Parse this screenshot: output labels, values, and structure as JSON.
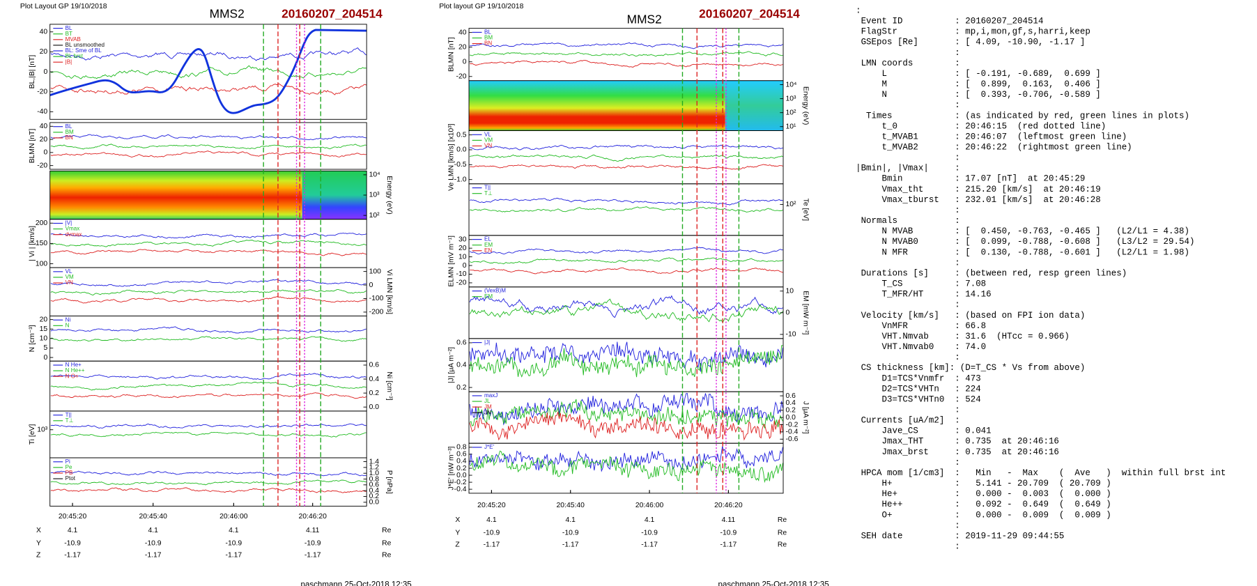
{
  "plots": [
    {
      "header": "Plot Layout GP 19/10/2018",
      "instrument": "MMS2",
      "event": "20160207_204514",
      "panels": [
        {
          "ylabel": "BL,|B| [nT]",
          "yticks": [
            "40",
            "20",
            "0",
            "-20",
            "-40"
          ],
          "legend": [
            "BL",
            "BT",
            "MVAB",
            "BL unsmoothed",
            "BL: Sme of BL",
            "BL brst",
            "|B|"
          ]
        },
        {
          "ylabel": "BLMN [nT]",
          "yticks": [
            "40",
            "20",
            "0",
            "-20"
          ],
          "legend": [
            "BL",
            "BM",
            "BN"
          ]
        },
        {
          "ylabel": "Energy (eV)",
          "yticks": [
            "10⁴",
            "10³",
            "10²"
          ],
          "legend": []
        },
        {
          "ylabel": "| Vi | [km/s]",
          "yticks": [
            "200",
            "150",
            "100"
          ],
          "legend": [
            "|V|",
            "Vmax",
            "dvmax"
          ]
        },
        {
          "ylabel": "Vi LMN [km/s]",
          "yticks": [
            "100",
            "0",
            "-100",
            "-200"
          ],
          "legend": [
            "VL",
            "VM",
            "VN"
          ]
        },
        {
          "ylabel": "N [cm⁻³]",
          "yticks": [
            "20",
            "15",
            "10",
            "5",
            "0"
          ],
          "legend": [
            "Ni",
            "N"
          ]
        },
        {
          "ylabel": "Ni [cm⁻³]",
          "yticks": [
            "0.6",
            "0.4",
            "0.2",
            "0.0"
          ],
          "legend": [
            "N He+",
            "N He++",
            "N O+"
          ]
        },
        {
          "ylabel": "Ti [eV]",
          "yticks": [
            "10³"
          ],
          "legend": [
            "T||",
            "T⊥"
          ]
        },
        {
          "ylabel": "P [nPa]",
          "yticks": [
            "1.4",
            "1.2",
            "1.0",
            "0.8",
            "0.6",
            "0.4",
            "0.2",
            "0.0"
          ],
          "legend": [
            "Pi",
            "Pe",
            "PB",
            "Ptot"
          ]
        }
      ],
      "time_ticks": [
        "20:45:20",
        "20:45:40",
        "20:46:00",
        "20:46:20"
      ],
      "position_rows": [
        {
          "label": "X",
          "values": [
            "4.1",
            "4.1",
            "4.1",
            "4.11"
          ],
          "unit": "Re"
        },
        {
          "label": "Y",
          "values": [
            "-10.9",
            "-10.9",
            "-10.9",
            "-10.9"
          ],
          "unit": "Re"
        },
        {
          "label": "Z",
          "values": [
            "-1.17",
            "-1.17",
            "-1.17",
            "-1.17"
          ],
          "unit": "Re"
        }
      ],
      "footer": "paschmann 25-Oct-2018 12:35"
    },
    {
      "header": "Plot layout GP 19/10/2018",
      "instrument": "MMS2",
      "event": "20160207_204514",
      "panels": [
        {
          "ylabel": "BLMN [nT]",
          "yticks": [
            "40",
            "20",
            "0",
            "-20"
          ],
          "legend": [
            "BL",
            "BM",
            "BN"
          ]
        },
        {
          "ylabel": "Energy (eV)",
          "yticks": [
            "10⁴",
            "10³",
            "10²",
            "10¹"
          ],
          "legend": []
        },
        {
          "ylabel": "Ve LMN [km/s] [x10³]",
          "yticks": [
            "0.5",
            "0.0",
            "-0.5",
            "-1.0"
          ],
          "legend": [
            "VL",
            "VM",
            "VN"
          ]
        },
        {
          "ylabel": "Te [eV]",
          "yticks": [
            "10²"
          ],
          "legend": [
            "T||",
            "T⊥"
          ]
        },
        {
          "ylabel": "ELMN [mV m⁻¹]",
          "yticks": [
            "30",
            "20",
            "10",
            "0",
            "-10",
            "-20"
          ],
          "legend": [
            "EL",
            "EM",
            "EN"
          ]
        },
        {
          "ylabel": "EM [mW m⁻²]",
          "yticks": [
            "10",
            "0",
            "-10"
          ],
          "legend": [
            "(VexB)M",
            "EM"
          ]
        },
        {
          "ylabel": "|J| [μA m⁻²]",
          "yticks": [
            "0.6",
            "0.4",
            "0.2"
          ],
          "legend": [
            "|J|"
          ]
        },
        {
          "ylabel": "J [μA m⁻²]",
          "yticks": [
            "0.6",
            "0.4",
            "0.2",
            "0.0",
            "-0.2",
            "-0.4",
            "-0.6"
          ],
          "legend": [
            "maxJ",
            "JL",
            "JM",
            "JN"
          ]
        },
        {
          "ylabel": "J*E' [nW m⁻³]",
          "yticks": [
            "0.8",
            "0.6",
            "0.4",
            "0.2",
            "0.0",
            "-0.2",
            "-0.4"
          ],
          "legend": [
            "J*E'"
          ]
        }
      ],
      "time_ticks": [
        "20:45:20",
        "20:45:40",
        "20:46:00",
        "20:46:20"
      ],
      "position_rows": [
        {
          "label": "X",
          "values": [
            "4.1",
            "4.1",
            "4.1",
            "4.11"
          ],
          "unit": "Re"
        },
        {
          "label": "Y",
          "values": [
            "-10.9",
            "-10.9",
            "-10.9",
            "-10.9"
          ],
          "unit": "Re"
        },
        {
          "label": "Z",
          "values": [
            "-1.17",
            "-1.17",
            "-1.17",
            "-1.17"
          ],
          "unit": "Re"
        }
      ],
      "footer": "paschmann 25-Oct-2018 12:35"
    }
  ],
  "summary": {
    "lines": [
      ":",
      " Event ID          : 20160207_204514",
      " FlagStr           : mp,i,mon,gf,s,harri,keep",
      " GSEpos [Re]       : [ 4.09, -10.90, -1.17 ]",
      "                   :",
      " LMN coords        :",
      "     L             : [ -0.191, -0.689,  0.699 ]",
      "     M             : [  0.899,  0.163,  0.406 ]",
      "     N             : [  0.393, -0.706, -0.589 ]",
      "                   :",
      "  Times            : (as indicated by red, green lines in plots)",
      "     t_0           : 20:46:15  (red dotted line)",
      "     t_MVAB1       : 20:46:07  (leftmost green line)",
      "     t_MVAB2       : 20:46:22  (rightmost green line)",
      "                   :",
      "|Bmin|, |Vmax|     :",
      "     Bmin          : 17.07 [nT]  at 20:45:29",
      "     Vmax_tht      : 215.20 [km/s]  at 20:46:19",
      "     Vmax_tburst   : 232.01 [km/s]  at 20:46:28",
      "                   :",
      " Normals           :",
      "     N MVAB        : [  0.450, -0.763, -0.465 ]   (L2/L1 = 4.38)",
      "     N MVAB0       : [  0.099, -0.788, -0.608 ]   (L3/L2 = 29.54)",
      "     N MFR         : [  0.130, -0.788, -0.601 ]   (L2/L1 = 1.98)",
      "                   :",
      " Durations [s]     : (between red, resp green lines)",
      "     T_CS          : 7.08",
      "     T_MFR/HT      : 14.16",
      "                   :",
      " Velocity [km/s]   : (based on FPI ion data)",
      "     VnMFR         : 66.8",
      "     VHT.Nmvab     : 31.6  (HTcc = 0.966)",
      "     VHT.Nmvab0    : 74.0",
      "                   :",
      " CS thickness [km]: (D=T_CS * Vs from above)",
      "     D1=TCS*Vnmfr  : 473",
      "     D2=TCS*VHTn   : 224",
      "     D3=TCS*VHTn0  : 524",
      "                   :",
      " Currents [uA/m2]  :",
      "     Jave_CS       : 0.041",
      "     Jmax_THT      : 0.735  at 20:46:16",
      "     Jmax_brst     : 0.735  at 20:46:16",
      "                   :",
      " HPCA mom [1/cm3]  :   Min   -  Max    (  Ave   )  within full brst int",
      "     H+            :   5.141 - 20.709  ( 20.709 )",
      "     He+           :   0.000 -  0.003  (  0.000 )",
      "     He++          :   0.092 -  0.649  (  0.649 )",
      "     O+            :   0.000 -  0.009  (  0.009 )",
      "                   :",
      " SEH date          : 2019-11-29 09:44:55",
      "                   :"
    ]
  }
}
